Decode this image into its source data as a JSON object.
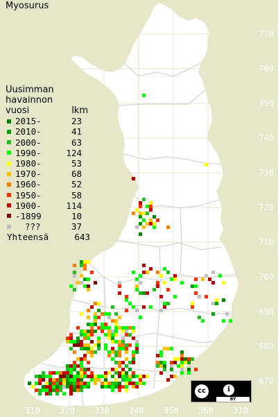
{
  "title": "Myosurus",
  "legend": {
    "header_line1": "Uusimman",
    "header_line2": "havainnon",
    "col_year": "vuosi",
    "col_count": "lkm",
    "rows": [
      {
        "label": "2015-",
        "count": "23",
        "color": "#008000"
      },
      {
        "label": "2010-",
        "count": "41",
        "color": "#00a000"
      },
      {
        "label": "2000-",
        "count": "63",
        "color": "#20c020"
      },
      {
        "label": "1990-",
        "count": "124",
        "color": "#00ff00"
      },
      {
        "label": "1980-",
        "count": "53",
        "color": "#ffff00"
      },
      {
        "label": "1970-",
        "count": "68",
        "color": "#ffc000"
      },
      {
        "label": "1960-",
        "count": "52",
        "color": "#ff8000"
      },
      {
        "label": "1950-",
        "count": "58",
        "color": "#ff3000"
      },
      {
        "label": "1900-",
        "count": "114",
        "color": "#c00000"
      },
      {
        "label": "-1899",
        "count": "10",
        "color": "#800000"
      },
      {
        "label": "???",
        "count": "37",
        "color": "#c0c0c0"
      }
    ],
    "total_label": "Yhteensä",
    "total_count": "643"
  },
  "grid_y_labels": [
    "770",
    "760",
    "750",
    "740",
    "730",
    "720",
    "710",
    "700",
    "690",
    "680",
    "670"
  ],
  "grid_x_labels": [
    "310",
    "320",
    "330",
    "340",
    "350",
    "360",
    "370"
  ],
  "license": {
    "cc": "cc",
    "by_icon": "i",
    "by": "BY"
  },
  "colors": {
    "background": "#e6e6c8",
    "land": "#ffffff",
    "grid": "#e0e0c8",
    "border": "#cccccc"
  }
}
